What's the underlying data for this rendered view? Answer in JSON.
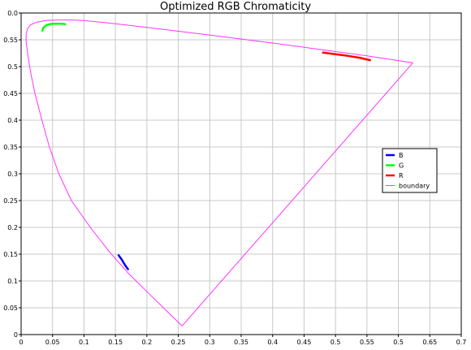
{
  "chart_data": {
    "type": "line",
    "title": "Optimized RGB Chromaticity",
    "xlabel": "",
    "ylabel": "",
    "xlim": [
      0,
      0.7
    ],
    "ylim": [
      0,
      0.6
    ],
    "grid": true,
    "legend_placement": "right",
    "x_ticks": [
      "0",
      "0.05",
      "0.1",
      "0.15",
      "0.2",
      "0.25",
      "0.3",
      "0.35",
      "0.4",
      "0.45",
      "0.5",
      "0.55",
      "0.6",
      "0.65",
      "0.7"
    ],
    "y_ticks": [
      "0",
      "0.05",
      "0.1",
      "0.15",
      "0.2",
      "0.25",
      "0.3",
      "0.35",
      "0.4",
      "0.45",
      "0.5",
      "0.55",
      "0.6"
    ],
    "y_top_tick_label": "0.0",
    "x_tick_override": {
      "12": "0.5"
    },
    "series": [
      {
        "name": "B",
        "color": "#0000ff",
        "x": [
          0.155,
          0.16,
          0.165,
          0.17
        ],
        "y": [
          0.148,
          0.14,
          0.13,
          0.122
        ]
      },
      {
        "name": "G",
        "color": "#00ff00",
        "x": [
          0.034,
          0.035,
          0.04,
          0.045,
          0.05,
          0.055,
          0.06,
          0.066,
          0.07
        ],
        "y": [
          0.567,
          0.572,
          0.577,
          0.579,
          0.58,
          0.58,
          0.58,
          0.58,
          0.579
        ]
      },
      {
        "name": "R",
        "color": "#ff0000",
        "x": [
          0.48,
          0.5,
          0.52,
          0.54,
          0.555
        ],
        "y": [
          0.526,
          0.523,
          0.52,
          0.516,
          0.512
        ]
      },
      {
        "name": "boundary",
        "color": "#ff33ff",
        "x": [
          0.256,
          0.235,
          0.2,
          0.17,
          0.14,
          0.11,
          0.08,
          0.06,
          0.045,
          0.033,
          0.022,
          0.015,
          0.011,
          0.008,
          0.008,
          0.01,
          0.015,
          0.025,
          0.04,
          0.06,
          0.08,
          0.1,
          0.15,
          0.2,
          0.3,
          0.4,
          0.5,
          0.55,
          0.623,
          0.256
        ],
        "y": [
          0.016,
          0.04,
          0.08,
          0.115,
          0.155,
          0.2,
          0.25,
          0.3,
          0.35,
          0.4,
          0.45,
          0.49,
          0.52,
          0.545,
          0.56,
          0.57,
          0.578,
          0.583,
          0.586,
          0.587,
          0.587,
          0.586,
          0.58,
          0.573,
          0.559,
          0.544,
          0.528,
          0.52,
          0.507,
          0.016
        ]
      }
    ]
  }
}
